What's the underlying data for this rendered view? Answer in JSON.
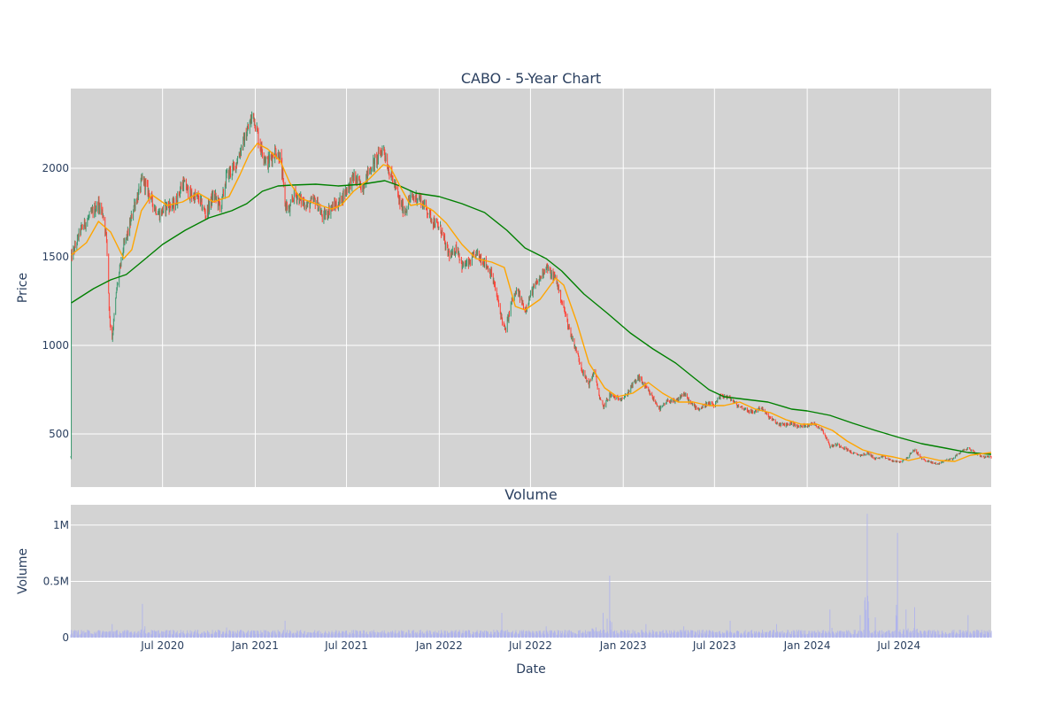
{
  "chart_data": [
    {
      "type": "candlestick",
      "title": "CABO - 5-Year Chart",
      "ylabel": "Price",
      "ylim": [
        200,
        2450
      ],
      "xlim": [
        "2020-01-01",
        "2024-12-31"
      ],
      "yticks": [
        500,
        1000,
        1500,
        2000
      ],
      "xticks": [
        "2020-07-01",
        "2021-01-01",
        "2021-07-01",
        "2022-01-01",
        "2022-07-01",
        "2023-01-01",
        "2023-07-01",
        "2024-01-01",
        "2024-07-01"
      ],
      "grid": true,
      "colors": {
        "up": "#3d9970",
        "down": "#ff4136",
        "ma50": "#ffa500",
        "ma200": "#008000",
        "plot_bg": "#d3d3d3",
        "grid": "#ffffff"
      },
      "price_path": [
        [
          "2020-01-02",
          1500
        ],
        [
          "2020-01-10",
          1560
        ],
        [
          "2020-01-20",
          1650
        ],
        [
          "2020-02-01",
          1700
        ],
        [
          "2020-02-15",
          1760
        ],
        [
          "2020-02-25",
          1800
        ],
        [
          "2020-03-05",
          1740
        ],
        [
          "2020-03-12",
          1600
        ],
        [
          "2020-03-18",
          1150
        ],
        [
          "2020-03-23",
          1040
        ],
        [
          "2020-04-01",
          1320
        ],
        [
          "2020-04-15",
          1560
        ],
        [
          "2020-04-25",
          1650
        ],
        [
          "2020-05-05",
          1790
        ],
        [
          "2020-05-15",
          1860
        ],
        [
          "2020-05-22",
          1940
        ],
        [
          "2020-06-01",
          1880
        ],
        [
          "2020-06-15",
          1780
        ],
        [
          "2020-06-25",
          1740
        ],
        [
          "2020-07-10",
          1790
        ],
        [
          "2020-07-25",
          1790
        ],
        [
          "2020-08-10",
          1920
        ],
        [
          "2020-08-25",
          1850
        ],
        [
          "2020-09-10",
          1830
        ],
        [
          "2020-09-25",
          1740
        ],
        [
          "2020-10-10",
          1850
        ],
        [
          "2020-10-25",
          1780
        ],
        [
          "2020-11-05",
          1960
        ],
        [
          "2020-11-20",
          2000
        ],
        [
          "2020-12-05",
          2120
        ],
        [
          "2020-12-20",
          2240
        ],
        [
          "2020-12-28",
          2310
        ],
        [
          "2021-01-10",
          2130
        ],
        [
          "2021-01-25",
          2030
        ],
        [
          "2021-02-10",
          2100
        ],
        [
          "2021-02-20",
          2060
        ],
        [
          "2021-03-01",
          1800
        ],
        [
          "2021-03-10",
          1760
        ],
        [
          "2021-03-20",
          1860
        ],
        [
          "2021-04-01",
          1820
        ],
        [
          "2021-04-15",
          1790
        ],
        [
          "2021-05-01",
          1820
        ],
        [
          "2021-05-15",
          1720
        ],
        [
          "2021-06-01",
          1780
        ],
        [
          "2021-06-15",
          1800
        ],
        [
          "2021-07-01",
          1880
        ],
        [
          "2021-07-15",
          1950
        ],
        [
          "2021-08-01",
          1890
        ],
        [
          "2021-08-15",
          1990
        ],
        [
          "2021-09-01",
          2060
        ],
        [
          "2021-09-12",
          2120
        ],
        [
          "2021-09-22",
          2000
        ],
        [
          "2021-10-05",
          1900
        ],
        [
          "2021-10-15",
          1800
        ],
        [
          "2021-10-25",
          1760
        ],
        [
          "2021-11-05",
          1830
        ],
        [
          "2021-11-20",
          1840
        ],
        [
          "2021-12-05",
          1780
        ],
        [
          "2021-12-20",
          1700
        ],
        [
          "2022-01-05",
          1650
        ],
        [
          "2022-01-15",
          1540
        ],
        [
          "2022-01-25",
          1500
        ],
        [
          "2022-02-05",
          1560
        ],
        [
          "2022-02-15",
          1450
        ],
        [
          "2022-03-01",
          1460
        ],
        [
          "2022-03-15",
          1520
        ],
        [
          "2022-04-01",
          1470
        ],
        [
          "2022-04-15",
          1400
        ],
        [
          "2022-04-25",
          1280
        ],
        [
          "2022-05-05",
          1150
        ],
        [
          "2022-05-12",
          1080
        ],
        [
          "2022-05-25",
          1250
        ],
        [
          "2022-06-05",
          1310
        ],
        [
          "2022-06-20",
          1200
        ],
        [
          "2022-07-05",
          1310
        ],
        [
          "2022-07-20",
          1380
        ],
        [
          "2022-08-01",
          1450
        ],
        [
          "2022-08-10",
          1400
        ],
        [
          "2022-08-20",
          1380
        ],
        [
          "2022-09-01",
          1250
        ],
        [
          "2022-09-15",
          1100
        ],
        [
          "2022-10-01",
          960
        ],
        [
          "2022-10-15",
          830
        ],
        [
          "2022-10-25",
          780
        ],
        [
          "2022-11-05",
          860
        ],
        [
          "2022-11-15",
          700
        ],
        [
          "2022-11-22",
          650
        ],
        [
          "2022-12-05",
          720
        ],
        [
          "2022-12-20",
          700
        ],
        [
          "2023-01-05",
          710
        ],
        [
          "2023-01-20",
          780
        ],
        [
          "2023-02-01",
          820
        ],
        [
          "2023-02-15",
          760
        ],
        [
          "2023-03-01",
          700
        ],
        [
          "2023-03-15",
          640
        ],
        [
          "2023-04-01",
          690
        ],
        [
          "2023-04-15",
          680
        ],
        [
          "2023-05-01",
          730
        ],
        [
          "2023-05-15",
          670
        ],
        [
          "2023-06-01",
          640
        ],
        [
          "2023-06-15",
          670
        ],
        [
          "2023-07-01",
          660
        ],
        [
          "2023-07-15",
          720
        ],
        [
          "2023-08-01",
          700
        ],
        [
          "2023-08-15",
          660
        ],
        [
          "2023-09-01",
          640
        ],
        [
          "2023-09-15",
          620
        ],
        [
          "2023-10-01",
          650
        ],
        [
          "2023-10-15",
          600
        ],
        [
          "2023-11-01",
          560
        ],
        [
          "2023-11-15",
          550
        ],
        [
          "2023-12-01",
          560
        ],
        [
          "2023-12-15",
          540
        ],
        [
          "2024-01-01",
          550
        ],
        [
          "2024-01-15",
          560
        ],
        [
          "2024-02-01",
          520
        ],
        [
          "2024-02-15",
          430
        ],
        [
          "2024-03-01",
          440
        ],
        [
          "2024-03-15",
          420
        ],
        [
          "2024-04-01",
          390
        ],
        [
          "2024-04-15",
          380
        ],
        [
          "2024-05-01",
          390
        ],
        [
          "2024-05-15",
          360
        ],
        [
          "2024-06-01",
          370
        ],
        [
          "2024-06-15",
          350
        ],
        [
          "2024-07-01",
          340
        ],
        [
          "2024-07-15",
          360
        ],
        [
          "2024-08-01",
          410
        ],
        [
          "2024-08-15",
          360
        ],
        [
          "2024-09-01",
          340
        ],
        [
          "2024-09-15",
          330
        ],
        [
          "2024-10-01",
          350
        ],
        [
          "2024-10-15",
          360
        ],
        [
          "2024-11-01",
          400
        ],
        [
          "2024-11-15",
          420
        ],
        [
          "2024-12-01",
          390
        ],
        [
          "2024-12-15",
          370
        ],
        [
          "2024-12-31",
          370
        ]
      ],
      "ma50": [
        [
          "2020-01-02",
          1510
        ],
        [
          "2020-02-01",
          1580
        ],
        [
          "2020-02-25",
          1700
        ],
        [
          "2020-03-20",
          1640
        ],
        [
          "2020-04-15",
          1490
        ],
        [
          "2020-05-01",
          1540
        ],
        [
          "2020-05-20",
          1760
        ],
        [
          "2020-06-10",
          1850
        ],
        [
          "2020-07-10",
          1790
        ],
        [
          "2020-08-10",
          1810
        ],
        [
          "2020-09-10",
          1860
        ],
        [
          "2020-10-10",
          1810
        ],
        [
          "2020-11-10",
          1840
        ],
        [
          "2020-12-01",
          1960
        ],
        [
          "2020-12-20",
          2080
        ],
        [
          "2021-01-05",
          2140
        ],
        [
          "2021-01-25",
          2110
        ],
        [
          "2021-02-20",
          2040
        ],
        [
          "2021-03-10",
          1920
        ],
        [
          "2021-04-01",
          1830
        ],
        [
          "2021-05-01",
          1800
        ],
        [
          "2021-06-01",
          1770
        ],
        [
          "2021-06-20",
          1790
        ],
        [
          "2021-07-15",
          1870
        ],
        [
          "2021-08-15",
          1940
        ],
        [
          "2021-09-12",
          2020
        ],
        [
          "2021-09-25",
          2010
        ],
        [
          "2021-10-15",
          1900
        ],
        [
          "2021-11-05",
          1790
        ],
        [
          "2021-11-25",
          1800
        ],
        [
          "2021-12-20",
          1760
        ],
        [
          "2022-01-15",
          1690
        ],
        [
          "2022-02-15",
          1570
        ],
        [
          "2022-03-15",
          1490
        ],
        [
          "2022-04-15",
          1470
        ],
        [
          "2022-05-10",
          1440
        ],
        [
          "2022-06-01",
          1220
        ],
        [
          "2022-06-20",
          1200
        ],
        [
          "2022-07-20",
          1260
        ],
        [
          "2022-08-20",
          1380
        ],
        [
          "2022-09-05",
          1340
        ],
        [
          "2022-10-01",
          1130
        ],
        [
          "2022-10-25",
          900
        ],
        [
          "2022-11-25",
          760
        ],
        [
          "2022-12-20",
          710
        ],
        [
          "2023-01-20",
          730
        ],
        [
          "2023-02-20",
          790
        ],
        [
          "2023-03-20",
          730
        ],
        [
          "2023-04-20",
          680
        ],
        [
          "2023-05-20",
          680
        ],
        [
          "2023-06-20",
          660
        ],
        [
          "2023-07-20",
          660
        ],
        [
          "2023-08-20",
          680
        ],
        [
          "2023-09-20",
          640
        ],
        [
          "2023-10-20",
          620
        ],
        [
          "2023-11-20",
          580
        ],
        [
          "2023-12-20",
          555
        ],
        [
          "2024-01-20",
          555
        ],
        [
          "2024-02-20",
          520
        ],
        [
          "2024-03-20",
          460
        ],
        [
          "2024-04-20",
          410
        ],
        [
          "2024-05-20",
          385
        ],
        [
          "2024-06-20",
          370
        ],
        [
          "2024-07-20",
          350
        ],
        [
          "2024-08-20",
          370
        ],
        [
          "2024-09-20",
          350
        ],
        [
          "2024-10-20",
          345
        ],
        [
          "2024-11-20",
          380
        ],
        [
          "2024-12-31",
          395
        ]
      ],
      "ma200": [
        [
          "2020-01-02",
          1240
        ],
        [
          "2020-02-15",
          1320
        ],
        [
          "2020-03-20",
          1370
        ],
        [
          "2020-04-20",
          1400
        ],
        [
          "2020-05-20",
          1470
        ],
        [
          "2020-07-01",
          1570
        ],
        [
          "2020-08-15",
          1650
        ],
        [
          "2020-10-01",
          1720
        ],
        [
          "2020-11-15",
          1760
        ],
        [
          "2020-12-15",
          1800
        ],
        [
          "2021-01-15",
          1870
        ],
        [
          "2021-02-15",
          1900
        ],
        [
          "2021-03-15",
          1905
        ],
        [
          "2021-05-01",
          1910
        ],
        [
          "2021-06-15",
          1900
        ],
        [
          "2021-08-01",
          1910
        ],
        [
          "2021-09-15",
          1930
        ],
        [
          "2021-10-15",
          1900
        ],
        [
          "2021-11-15",
          1860
        ],
        [
          "2022-01-01",
          1840
        ],
        [
          "2022-02-15",
          1800
        ],
        [
          "2022-04-01",
          1750
        ],
        [
          "2022-05-15",
          1650
        ],
        [
          "2022-06-20",
          1550
        ],
        [
          "2022-08-01",
          1490
        ],
        [
          "2022-09-01",
          1420
        ],
        [
          "2022-10-15",
          1290
        ],
        [
          "2022-12-01",
          1180
        ],
        [
          "2023-01-15",
          1070
        ],
        [
          "2023-03-01",
          980
        ],
        [
          "2023-04-15",
          900
        ],
        [
          "2023-05-20",
          820
        ],
        [
          "2023-06-20",
          750
        ],
        [
          "2023-07-20",
          710
        ],
        [
          "2023-09-01",
          695
        ],
        [
          "2023-10-15",
          680
        ],
        [
          "2023-12-01",
          640
        ],
        [
          "2024-01-01",
          630
        ],
        [
          "2024-02-15",
          605
        ],
        [
          "2024-04-01",
          560
        ],
        [
          "2024-05-15",
          520
        ],
        [
          "2024-07-01",
          480
        ],
        [
          "2024-08-15",
          445
        ],
        [
          "2024-10-01",
          420
        ],
        [
          "2024-11-15",
          395
        ],
        [
          "2024-12-31",
          385
        ]
      ]
    },
    {
      "type": "bar",
      "title": "Volume",
      "xlabel": "Date",
      "ylabel": "Volume",
      "ylim": [
        0,
        1180000
      ],
      "ytick_labels": [
        "0",
        "0.5M",
        "1M"
      ],
      "yticks": [
        0,
        500000,
        1000000
      ],
      "xtick_labels": [
        "Jul 2020",
        "Jan 2021",
        "Jul 2021",
        "Jan 2022",
        "Jul 2022",
        "Jan 2023",
        "Jul 2023",
        "Jan 2024",
        "Jul 2024"
      ],
      "grid": true,
      "colors": {
        "bar": "#b0b4ec",
        "plot_bg": "#d3d3d3",
        "grid": "#ffffff"
      },
      "baseline": 50000,
      "spikes": [
        [
          "2020-03-23",
          120000
        ],
        [
          "2020-05-22",
          300000
        ],
        [
          "2020-11-05",
          90000
        ],
        [
          "2021-03-01",
          150000
        ],
        [
          "2021-05-15",
          80000
        ],
        [
          "2022-05-05",
          220000
        ],
        [
          "2022-08-01",
          100000
        ],
        [
          "2022-11-05",
          280000
        ],
        [
          "2022-11-22",
          220000
        ],
        [
          "2022-12-05",
          550000
        ],
        [
          "2023-02-15",
          120000
        ],
        [
          "2023-05-01",
          100000
        ],
        [
          "2023-08-01",
          150000
        ],
        [
          "2023-11-01",
          120000
        ],
        [
          "2024-02-15",
          250000
        ],
        [
          "2024-04-15",
          200000
        ],
        [
          "2024-04-29",
          1100000
        ],
        [
          "2024-05-15",
          180000
        ],
        [
          "2024-06-28",
          930000
        ],
        [
          "2024-07-15",
          250000
        ],
        [
          "2024-08-01",
          270000
        ],
        [
          "2024-11-15",
          200000
        ]
      ]
    }
  ]
}
